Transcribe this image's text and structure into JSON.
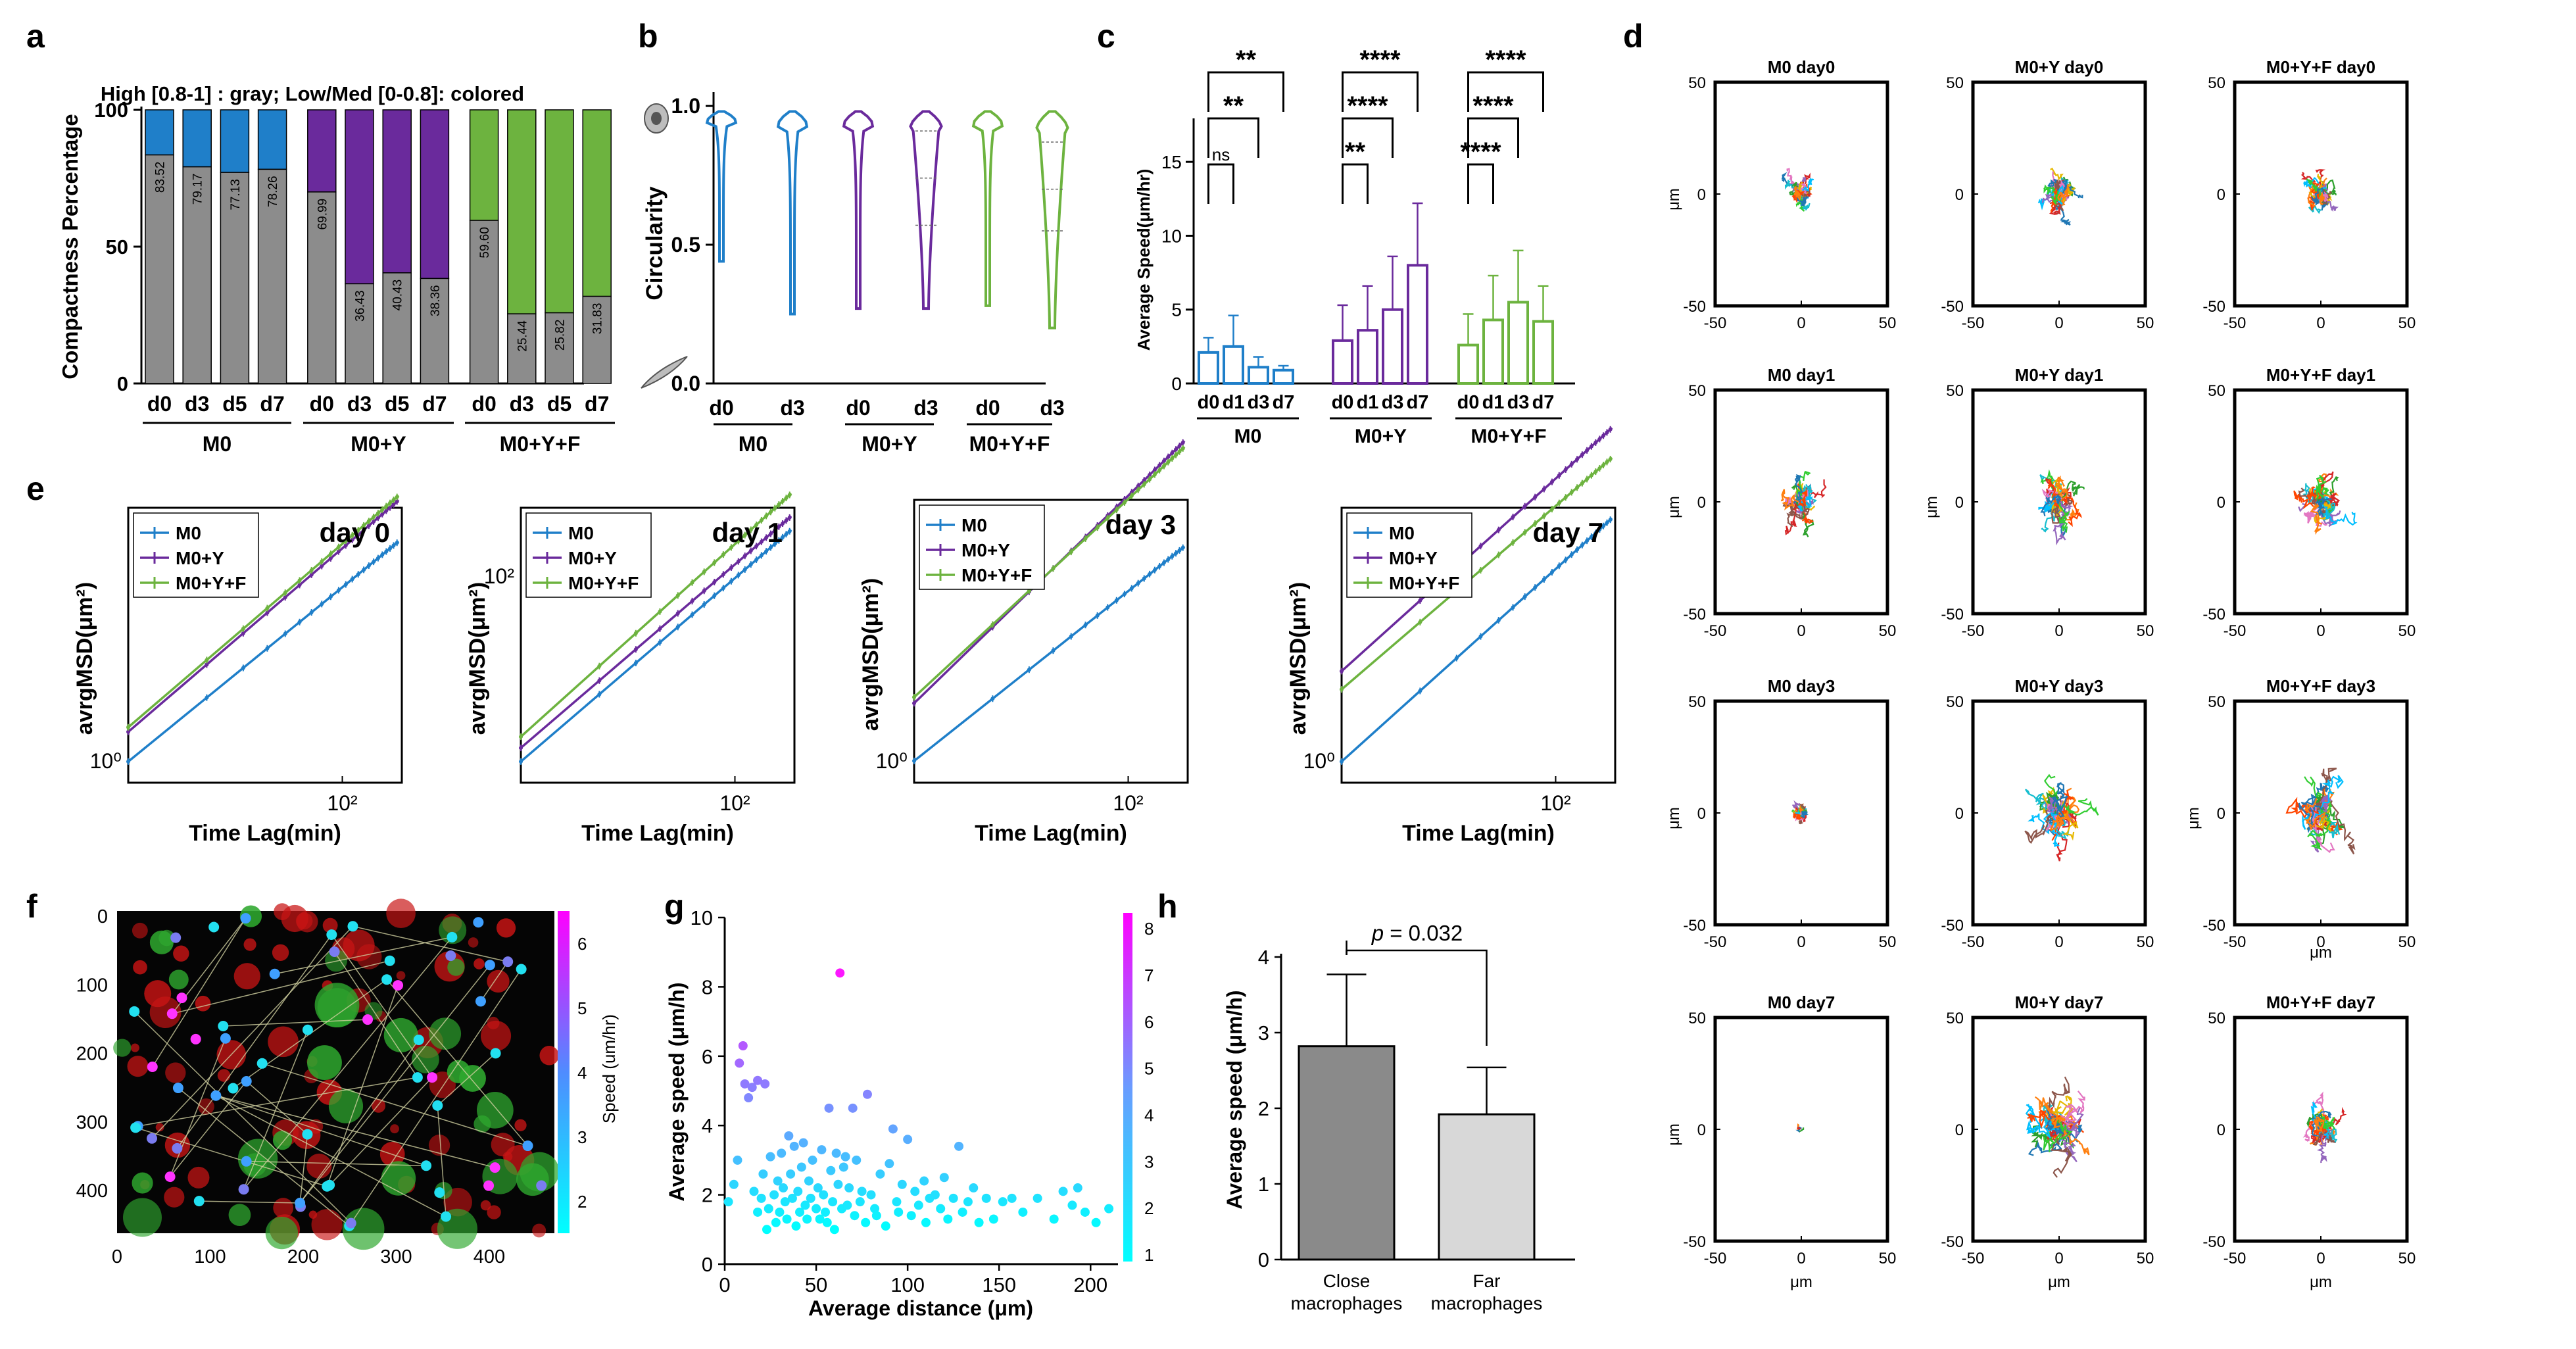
{
  "panel_labels": [
    "a",
    "b",
    "c",
    "d",
    "e",
    "f",
    "g",
    "h"
  ],
  "colors": {
    "M0": "#1f7fc9",
    "M0+Y": "#6a2a9c",
    "M0+Y+F": "#6db33f",
    "gray": "#8c8c8c"
  },
  "chart_data": [
    {
      "panel": "a",
      "type": "bar",
      "title": "High [0.8-1] : gray; Low/Med [0-0.8]: colored",
      "ylabel": "Compactness Percentage",
      "ylim": [
        0,
        100
      ],
      "yticks": [
        "0",
        "50",
        "100"
      ],
      "categories": [
        "d0",
        "d3",
        "d5",
        "d7",
        "d0",
        "d3",
        "d5",
        "d7",
        "d0",
        "d3",
        "d5",
        "d7"
      ],
      "groups": [
        "M0",
        "M0+Y",
        "M0+Y+F"
      ],
      "series": [
        {
          "name": "High [0.8-1]",
          "color": "#8c8c8c",
          "values": [
            83.52,
            79.17,
            77.13,
            78.26,
            69.99,
            36.43,
            40.43,
            38.36,
            59.6,
            25.44,
            25.82,
            31.83
          ]
        },
        {
          "name": "Low/Med [0-0.8]",
          "values": [
            16.48,
            20.83,
            22.87,
            21.74,
            30.01,
            63.57,
            59.57,
            61.64,
            40.4,
            74.56,
            74.18,
            68.17
          ]
        }
      ],
      "data_labels": [
        "83.52",
        "79.17",
        "77.13",
        "78.26",
        "69.99",
        "36.43",
        "40.43",
        "38.36",
        "59.60",
        "25.44",
        "25.82",
        "31.83"
      ]
    },
    {
      "panel": "b",
      "type": "violin",
      "ylabel": "Circularity",
      "ylim": [
        0.0,
        1.05
      ],
      "yticks": [
        "0.0",
        "0.5",
        "1.0"
      ],
      "categories": [
        "d0",
        "d3",
        "d0",
        "d3",
        "d0",
        "d3"
      ],
      "groups": [
        "M0",
        "M0+Y",
        "M0+Y+F"
      ],
      "violins": [
        {
          "min": 0.44,
          "max": 0.98,
          "median": 0.95,
          "q1": 0.93,
          "q3": 0.97
        },
        {
          "min": 0.25,
          "max": 0.98,
          "median": 0.95,
          "q1": 0.92,
          "q3": 0.97
        },
        {
          "min": 0.27,
          "max": 0.98,
          "median": 0.94,
          "q1": 0.88,
          "q3": 0.97
        },
        {
          "min": 0.27,
          "max": 0.98,
          "median": 0.74,
          "q1": 0.57,
          "q3": 0.91
        },
        {
          "min": 0.28,
          "max": 0.98,
          "median": 0.93,
          "q1": 0.86,
          "q3": 0.97
        },
        {
          "min": 0.2,
          "max": 0.98,
          "median": 0.7,
          "q1": 0.55,
          "q3": 0.87
        }
      ]
    },
    {
      "panel": "c",
      "type": "bar",
      "ylabel": "Average Speed(μm/hr)",
      "ylim": [
        0,
        20
      ],
      "yticks": [
        "0",
        "5",
        "10",
        "15"
      ],
      "categories": [
        "d0",
        "d1",
        "d3",
        "d7",
        "d0",
        "d1",
        "d3",
        "d7",
        "d0",
        "d1",
        "d3",
        "d7"
      ],
      "groups": [
        "M0",
        "M0+Y",
        "M0+Y+F"
      ],
      "values": [
        2.1,
        2.5,
        1.1,
        0.9,
        2.9,
        3.6,
        5.0,
        8.0,
        2.6,
        4.3,
        5.5,
        4.2
      ],
      "errors": [
        1.0,
        2.1,
        0.7,
        0.3,
        2.4,
        3.0,
        3.6,
        4.2,
        2.1,
        3.0,
        3.5,
        2.4
      ],
      "significance": [
        {
          "group": 0,
          "from": 0,
          "to": 1,
          "label": "ns"
        },
        {
          "group": 0,
          "from": 0,
          "to": 2,
          "label": "**"
        },
        {
          "group": 0,
          "from": 0,
          "to": 3,
          "label": "**"
        },
        {
          "group": 1,
          "from": 0,
          "to": 1,
          "label": "**"
        },
        {
          "group": 1,
          "from": 0,
          "to": 2,
          "label": "****"
        },
        {
          "group": 1,
          "from": 0,
          "to": 3,
          "label": "****"
        },
        {
          "group": 2,
          "from": 0,
          "to": 1,
          "label": "****"
        },
        {
          "group": 2,
          "from": 0,
          "to": 2,
          "label": "****"
        },
        {
          "group": 2,
          "from": 0,
          "to": 3,
          "label": "****"
        }
      ]
    },
    {
      "panel": "d",
      "type": "trajectory",
      "xlabel": "μm",
      "ylabel": "μm",
      "xlim": [
        -50,
        50
      ],
      "ylim": [
        -50,
        50
      ],
      "ticks": [
        "-50",
        "0",
        "50"
      ],
      "plots": [
        {
          "title": "M0 day0",
          "spread": 10
        },
        {
          "title": "M0+Y day0",
          "spread": 16
        },
        {
          "title": "M0+Y+F day0",
          "spread": 13
        },
        {
          "title": "M0 day1",
          "spread": 17
        },
        {
          "title": "M0+Y day1",
          "spread": 18
        },
        {
          "title": "M0+Y+F day1",
          "spread": 20
        },
        {
          "title": "M0 day3",
          "spread": 6
        },
        {
          "title": "M0+Y day3",
          "spread": 22
        },
        {
          "title": "M0+Y+F day3",
          "spread": 26
        },
        {
          "title": "M0 day7",
          "spread": 4
        },
        {
          "title": "M0+Y day7",
          "spread": 27
        },
        {
          "title": "M0+Y+F day7",
          "spread": 15
        }
      ]
    },
    {
      "panel": "e",
      "type": "line",
      "xlabel": "Time Lag(min)",
      "ylabel": "avrgMSD(μm²)",
      "xscale": "log",
      "yscale": "log",
      "legend": [
        "M0",
        "M0+Y",
        "M0+Y+F"
      ],
      "x": [
        5,
        10,
        15,
        20,
        25,
        30,
        35,
        40,
        45,
        50,
        55,
        60,
        65,
        70,
        75,
        80,
        85,
        90,
        95,
        100,
        105,
        110,
        115,
        120,
        125,
        130,
        135,
        140,
        145,
        150,
        155,
        160,
        165,
        170,
        175,
        180,
        185,
        190,
        195,
        200,
        205,
        210,
        215,
        220
      ],
      "plots": [
        {
          "title": "day 0",
          "xticks": [
            "10²"
          ],
          "yticks": [
            "10⁰"
          ],
          "exponents": {
            "M0": 0.95,
            "M0+Y": 1.0,
            "M0+Y+F": 1.0
          },
          "start": {
            "M0": 0.8,
            "M0+Y": 1.3,
            "M0+Y+F": 1.4
          }
        },
        {
          "title": "day 1",
          "xticks": [
            "10²"
          ],
          "yticks": [
            "10²"
          ],
          "exponents": {
            "M0": 1.0,
            "M0+Y": 1.0,
            "M0+Y+F": 1.05
          },
          "start": {
            "M0": 20,
            "M0+Y": 25,
            "M0+Y+F": 30
          }
        },
        {
          "title": "day 3",
          "xticks": [
            "10²"
          ],
          "yticks": [
            "10⁰"
          ],
          "exponents": {
            "M0": 0.9,
            "M0+Y": 1.1,
            "M0+Y+F": 1.05
          },
          "start": {
            "M0": 0.8,
            "M0+Y": 2.0,
            "M0+Y+F": 2.2
          }
        },
        {
          "title": "day 7",
          "xticks": [
            "10²"
          ],
          "yticks": [
            "10⁰"
          ],
          "exponents": {
            "M0": 1.05,
            "M0+Y": 1.05,
            "M0+Y+F": 1.0
          },
          "start": {
            "M0": 0.8,
            "M0+Y": 3.5,
            "M0+Y+F": 2.6
          }
        }
      ]
    },
    {
      "panel": "f",
      "type": "image",
      "xticks": [
        "0",
        "100",
        "200",
        "300",
        "400"
      ],
      "yticks": [
        "0",
        "100",
        "200",
        "300",
        "400"
      ],
      "colorbar_label": "Speed (um/hr)",
      "colorbar_ticks": [
        "2",
        "3",
        "4",
        "5",
        "6"
      ]
    },
    {
      "panel": "g",
      "type": "scatter",
      "xlabel": "Average distance (μm)",
      "ylabel": "Average speed (μm/h)",
      "xlim": [
        0,
        215
      ],
      "ylim": [
        0,
        10
      ],
      "xticks": [
        "0",
        "50",
        "100",
        "150",
        "200"
      ],
      "yticks": [
        "0",
        "2",
        "4",
        "6",
        "8",
        "10"
      ],
      "colorbar_ticks": [
        "1",
        "2",
        "3",
        "4",
        "5",
        "6",
        "7",
        "8"
      ],
      "points": [
        [
          2,
          1.8
        ],
        [
          5,
          2.3
        ],
        [
          7,
          3.0
        ],
        [
          8,
          5.8
        ],
        [
          10,
          6.3
        ],
        [
          11,
          5.2
        ],
        [
          13,
          4.8
        ],
        [
          15,
          5.1
        ],
        [
          16,
          2.1
        ],
        [
          18,
          5.3
        ],
        [
          18,
          1.5
        ],
        [
          20,
          1.9
        ],
        [
          21,
          2.6
        ],
        [
          22,
          5.2
        ],
        [
          23,
          1.0
        ],
        [
          24,
          1.6
        ],
        [
          25,
          3.1
        ],
        [
          27,
          2.0
        ],
        [
          28,
          1.2
        ],
        [
          29,
          2.4
        ],
        [
          30,
          1.5
        ],
        [
          31,
          3.2
        ],
        [
          32,
          2.2
        ],
        [
          33,
          1.8
        ],
        [
          34,
          1.3
        ],
        [
          35,
          3.7
        ],
        [
          36,
          2.6
        ],
        [
          37,
          1.9
        ],
        [
          38,
          3.4
        ],
        [
          39,
          1.1
        ],
        [
          40,
          2.1
        ],
        [
          41,
          1.5
        ],
        [
          42,
          2.8
        ],
        [
          43,
          3.5
        ],
        [
          44,
          1.7
        ],
        [
          45,
          1.3
        ],
        [
          46,
          2.4
        ],
        [
          47,
          1.9
        ],
        [
          48,
          3.0
        ],
        [
          50,
          1.6
        ],
        [
          51,
          2.2
        ],
        [
          52,
          1.3
        ],
        [
          53,
          3.3
        ],
        [
          54,
          2.0
        ],
        [
          55,
          1.5
        ],
        [
          56,
          1.2
        ],
        [
          57,
          4.5
        ],
        [
          58,
          2.7
        ],
        [
          59,
          1.8
        ],
        [
          60,
          1.0
        ],
        [
          61,
          3.2
        ],
        [
          62,
          2.3
        ],
        [
          63,
          8.4
        ],
        [
          64,
          1.6
        ],
        [
          65,
          2.8
        ],
        [
          66,
          3.1
        ],
        [
          67,
          1.7
        ],
        [
          68,
          2.2
        ],
        [
          70,
          4.5
        ],
        [
          71,
          1.4
        ],
        [
          72,
          3.0
        ],
        [
          74,
          1.8
        ],
        [
          75,
          2.1
        ],
        [
          77,
          1.2
        ],
        [
          78,
          4.9
        ],
        [
          80,
          2.0
        ],
        [
          82,
          1.6
        ],
        [
          83,
          1.4
        ],
        [
          85,
          2.6
        ],
        [
          88,
          1.1
        ],
        [
          90,
          2.9
        ],
        [
          92,
          3.9
        ],
        [
          94,
          1.8
        ],
        [
          95,
          1.5
        ],
        [
          97,
          2.3
        ],
        [
          100,
          3.6
        ],
        [
          102,
          1.4
        ],
        [
          104,
          2.1
        ],
        [
          106,
          1.7
        ],
        [
          109,
          2.4
        ],
        [
          110,
          1.2
        ],
        [
          112,
          1.9
        ],
        [
          115,
          2.0
        ],
        [
          118,
          1.6
        ],
        [
          120,
          2.5
        ],
        [
          122,
          1.3
        ],
        [
          125,
          1.9
        ],
        [
          128,
          3.4
        ],
        [
          130,
          1.5
        ],
        [
          133,
          1.8
        ],
        [
          136,
          2.2
        ],
        [
          139,
          1.2
        ],
        [
          143,
          1.9
        ],
        [
          147,
          1.3
        ],
        [
          152,
          1.8
        ],
        [
          157,
          1.9
        ],
        [
          163,
          1.5
        ],
        [
          171,
          1.9
        ],
        [
          180,
          1.3
        ],
        [
          185,
          2.1
        ],
        [
          190,
          1.7
        ],
        [
          193,
          2.2
        ],
        [
          197,
          1.5
        ],
        [
          203,
          1.2
        ],
        [
          210,
          1.6
        ]
      ]
    },
    {
      "panel": "h",
      "type": "bar",
      "ylabel": "Average speed (μm/h)",
      "ylim": [
        0,
        4
      ],
      "yticks": [
        "0",
        "1",
        "2",
        "3",
        "4"
      ],
      "categories": [
        [
          "Close",
          "macrophages"
        ],
        [
          "Far",
          "macrophages"
        ]
      ],
      "values": [
        2.82,
        1.92
      ],
      "errors": [
        0.95,
        0.62
      ],
      "annotation_label": "p",
      "annotation_value": " = 0.032"
    }
  ]
}
